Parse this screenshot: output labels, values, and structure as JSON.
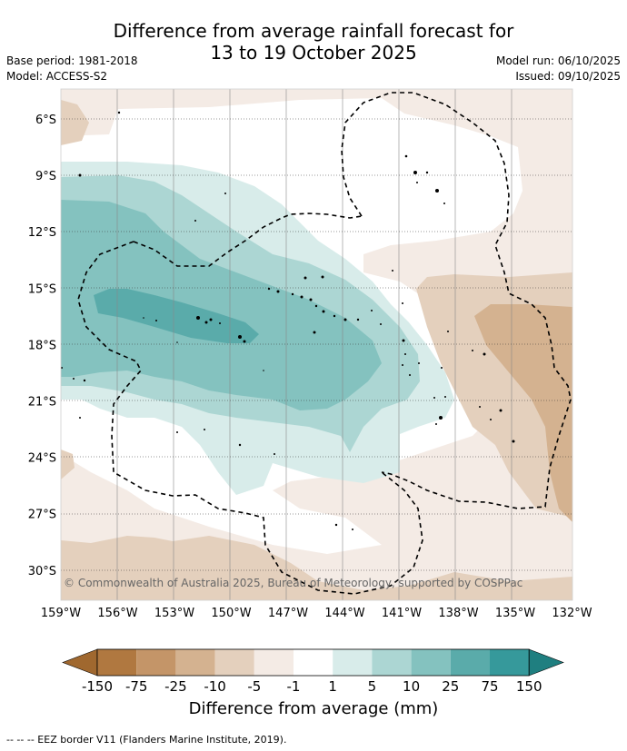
{
  "title_line1": "Difference from average rainfall forecast for",
  "title_line2": "13 to 19 October 2025",
  "base_period": "Base period: 1981-2018",
  "model": "Model: ACCESS-S2",
  "model_run": "Model run: 06/10/2025",
  "issued": "Issued: 09/10/2025",
  "copyright": "© Commonwealth of Australia 2025, Bureau of Meteorology, supported by COSPPac",
  "lon_labels": [
    "159°W",
    "156°W",
    "153°W",
    "150°W",
    "147°W",
    "144°W",
    "141°W",
    "138°W",
    "135°W",
    "132°W"
  ],
  "lat_labels": [
    "6°S",
    "9°S",
    "12°S",
    "15°S",
    "18°S",
    "21°S",
    "24°S",
    "27°S",
    "30°S"
  ],
  "colorbar": {
    "ticks": [
      "-150",
      "-75",
      "-25",
      "-10",
      "-5",
      "-1",
      "1",
      "5",
      "10",
      "25",
      "75",
      "150"
    ],
    "colors": [
      "#a0682f",
      "#b07840",
      "#c49568",
      "#d4b290",
      "#e4d0bd",
      "#f4ebe5",
      "#ffffff",
      "#d8ecea",
      "#acd6d3",
      "#84c2bf",
      "#5aabaa",
      "#36999b",
      "#1f7f80"
    ],
    "label": "Difference from average (mm)"
  },
  "footer": "--  --  -- EEZ border V11 (Flanders Marine Institute, 2019)."
}
